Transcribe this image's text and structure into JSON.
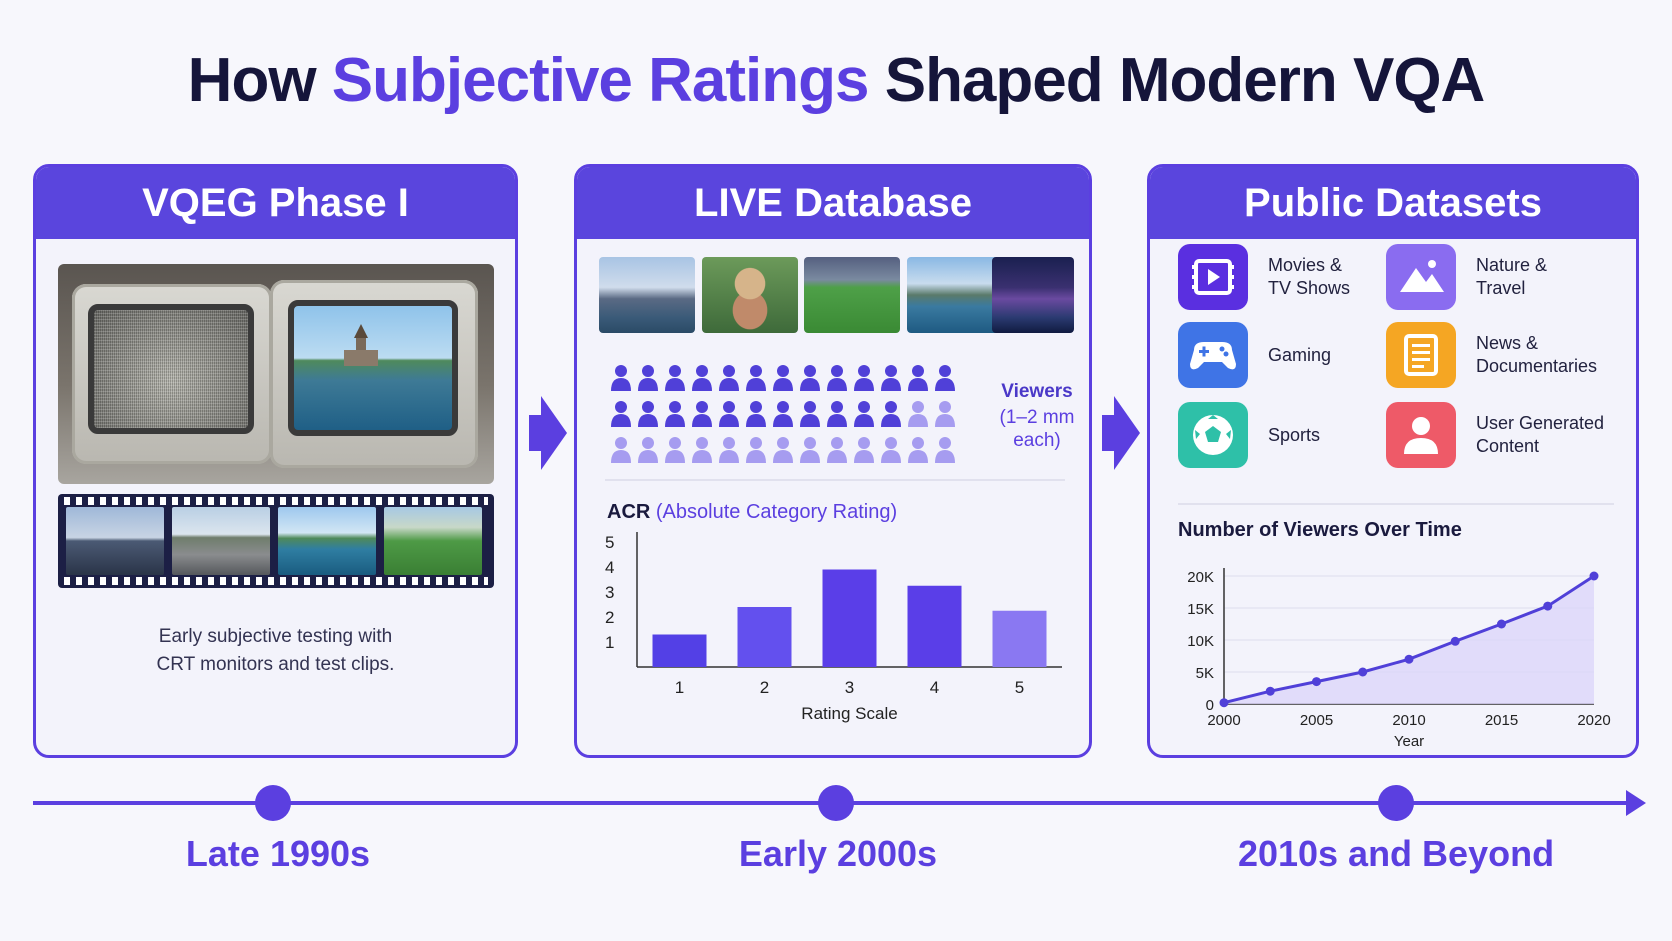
{
  "title": {
    "prefix": "How ",
    "accent": "Subjective Ratings",
    "suffix": " Shaped Modern VQA"
  },
  "panels": {
    "vqeg": {
      "heading": "VQEG Phase I",
      "caption_line1": "Early subjective testing with",
      "caption_line2": "CRT monitors and test clips."
    },
    "live": {
      "heading": "LIVE Database",
      "thumbnails": [
        "city-skyline",
        "woman-in-hat",
        "soccer-match",
        "mountain-lake",
        "night-city"
      ],
      "viewers_label": "Viewers",
      "viewers_sub": "(1–2 mm each)",
      "people_rows": [
        {
          "dark": 13,
          "light": 0
        },
        {
          "dark": 11,
          "light": 2
        },
        {
          "dark": 0,
          "light": 13
        }
      ],
      "acr_bold": "ACR",
      "acr_rest": " (Absolute Category Rating)"
    },
    "public": {
      "heading": "Public Datasets",
      "categories": [
        {
          "label": "Movies &\nTV Shows",
          "icon": "film-icon",
          "color": "#5a2fe0"
        },
        {
          "label": "Nature &\nTravel",
          "icon": "mountain-icon",
          "color": "#8a6cf0"
        },
        {
          "label": "Gaming",
          "icon": "gamepad-icon",
          "color": "#3f74e6"
        },
        {
          "label": "News &\nDocumentaries",
          "icon": "document-icon",
          "color": "#f5a623"
        },
        {
          "label": "Sports",
          "icon": "soccer-ball-icon",
          "color": "#2ec0a8"
        },
        {
          "label": "User Generated\nContent",
          "icon": "user-icon",
          "color": "#ee5a68"
        }
      ],
      "line_title": "Number of Viewers Over Time"
    }
  },
  "timeline": [
    "Late 1990s",
    "Early 2000s",
    "2010s and Beyond"
  ],
  "colors": {
    "accent": "#5b3fe0",
    "header": "#5a45dd",
    "dark_text": "#15153a"
  },
  "chart_data": [
    {
      "type": "bar",
      "categories": [
        "1",
        "2",
        "3",
        "4",
        "5"
      ],
      "values": [
        1.3,
        2.4,
        3.9,
        3.25,
        2.25
      ],
      "xlabel": "Rating Scale",
      "ylabel": "",
      "yticks": [
        "1",
        "2",
        "3",
        "4",
        "5"
      ],
      "ylim": [
        0,
        5
      ],
      "colors": [
        "#5340e6",
        "#6350ee",
        "#5a3ee8",
        "#5a3ee8",
        "#8a78f2"
      ]
    },
    {
      "type": "area",
      "x": [
        2000,
        2002.5,
        2005,
        2007.5,
        2010,
        2012.5,
        2015,
        2017.5,
        2020
      ],
      "values": [
        200,
        2000,
        3500,
        5000,
        7000,
        9800,
        12500,
        15300,
        20000
      ],
      "xticks": [
        "2000",
        "2005",
        "2010",
        "2015",
        "2020"
      ],
      "yticks": [
        "0",
        "5K",
        "10K",
        "15K",
        "20K"
      ],
      "xlabel": "Year",
      "ylabel": "",
      "xlim": [
        2000,
        2020
      ],
      "ylim": [
        0,
        20000
      ],
      "grid": true
    }
  ]
}
